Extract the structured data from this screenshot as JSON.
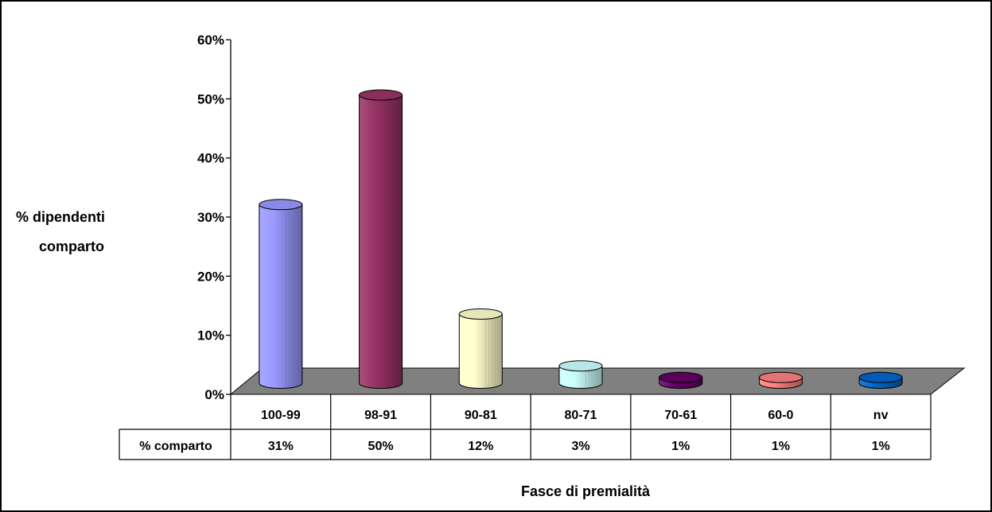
{
  "chart_data": {
    "type": "bar",
    "style": "3d-cylinder",
    "categories": [
      "100-99",
      "98-91",
      "90-81",
      "80-71",
      "70-61",
      "60-0",
      "nv"
    ],
    "series": [
      {
        "name": "% comparto",
        "values": [
          31,
          50,
          12,
          3,
          1,
          1,
          1
        ],
        "value_labels": [
          "31%",
          "50%",
          "12%",
          "3%",
          "1%",
          "1%",
          "1%"
        ],
        "colors": [
          "#9999ff",
          "#993366",
          "#ffffcc",
          "#ccffff",
          "#660066",
          "#ff8080",
          "#0066cc"
        ]
      }
    ],
    "title": "",
    "xlabel": "Fasce di premialità",
    "ylabel": "% dipendenti comparto",
    "ylabel_lines": [
      "% dipendenti",
      "comparto"
    ],
    "ylim": [
      0,
      60
    ],
    "yticks": [
      0,
      10,
      20,
      30,
      40,
      50,
      60
    ],
    "ytick_labels": [
      "0%",
      "10%",
      "20%",
      "30%",
      "40%",
      "50%",
      "60%"
    ],
    "grid": false,
    "floor_color": "#808080",
    "data_table": true,
    "data_table_row_label": "% comparto"
  }
}
